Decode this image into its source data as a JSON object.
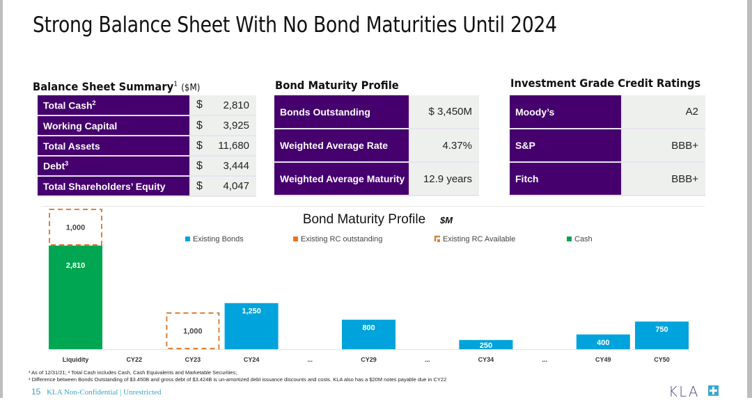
{
  "title": "Strong Balance Sheet With No Bond Maturities Until 2024",
  "balance_sheet": {
    "heading": "Balance Sheet Summary",
    "heading_sup": "1",
    "heading_unit": "($M)",
    "rows": [
      {
        "label": "Total Cash",
        "sup": "2",
        "currency": "$",
        "value": "2,810"
      },
      {
        "label": "Working Capital",
        "sup": "",
        "currency": "$",
        "value": "3,925"
      },
      {
        "label": "Total Assets",
        "sup": "",
        "currency": "$",
        "value": "11,680"
      },
      {
        "label": "Debt",
        "sup": "3",
        "currency": "$",
        "value": "3,444"
      },
      {
        "label": "Total Shareholders’ Equity",
        "sup": "",
        "currency": "$",
        "value": "4,047"
      }
    ]
  },
  "bond_profile": {
    "heading": "Bond Maturity Profile",
    "rows": [
      {
        "label": "Bonds Outstanding",
        "value": "$ 3,450M"
      },
      {
        "label": "Weighted Average Rate",
        "value": "4.37%"
      },
      {
        "label": "Weighted Average Maturity",
        "value": "12.9 years"
      }
    ]
  },
  "ratings": {
    "heading": "Investment Grade Credit Ratings",
    "rows": [
      {
        "label": "Moody’s",
        "value": "A2"
      },
      {
        "label": "S&P",
        "value": "BBB+"
      },
      {
        "label": "Fitch",
        "value": "BBB+"
      }
    ]
  },
  "chart_data": {
    "type": "bar",
    "title": "Bond Maturity Profile",
    "title_unit": "$M",
    "legend": [
      {
        "name": "Existing Bonds",
        "color": "#00a3dc",
        "style": "solid"
      },
      {
        "name": "Existing RC outstanding",
        "color": "#f07020",
        "style": "solid"
      },
      {
        "name": "Existing RC Available",
        "color": "#d9813a",
        "style": "dashed"
      },
      {
        "name": "Cash",
        "color": "#00a651",
        "style": "solid"
      }
    ],
    "legend_position": "top",
    "categories": [
      "Liquidity",
      "CY22",
      "CY23",
      "CY24",
      "...",
      "CY29",
      "...",
      "CY34",
      "...",
      "CY49",
      "CY50"
    ],
    "series": [
      {
        "name": "Cash",
        "values": [
          2810,
          0,
          0,
          0,
          null,
          0,
          null,
          0,
          null,
          0,
          0
        ],
        "labels": [
          "2,810",
          "",
          "",
          "",
          "",
          "",
          "",
          "",
          "",
          "",
          ""
        ]
      },
      {
        "name": "Existing RC Available",
        "values": [
          1000,
          0,
          1000,
          0,
          null,
          0,
          null,
          0,
          null,
          0,
          0
        ],
        "labels": [
          "1,000",
          "",
          "1,000",
          "",
          "",
          "",
          "",
          "",
          "",
          "",
          ""
        ]
      },
      {
        "name": "Existing Bonds",
        "values": [
          0,
          0,
          0,
          1250,
          null,
          800,
          null,
          250,
          null,
          400,
          750
        ],
        "labels": [
          "",
          "",
          "",
          "1,250",
          "",
          "800",
          "",
          "250",
          "",
          "400",
          "750"
        ]
      }
    ],
    "ylim": [
      0,
      3810
    ],
    "grid": false
  },
  "footnotes": [
    "¹ As of 12/31/21; ² Total Cash includes Cash, Cash Equivalents and Marketable Securities;",
    "³ Difference between Bonds Outstanding of $3.450B and gross debt of $3.424B is un-amortized debt issuance discounts and costs. KLA also has a $20M notes payable due in CY22"
  ],
  "footer": {
    "page_number": "15",
    "classification": "KLA Non-Confidential | Unrestricted"
  },
  "logo": {
    "text": "KLA",
    "icon": "plus-icon"
  },
  "colors": {
    "purple": "#45006e",
    "bonds": "#00a3dc",
    "cash": "#00a651",
    "rc_available": "#d9813a",
    "rc_outstanding": "#f07020"
  }
}
